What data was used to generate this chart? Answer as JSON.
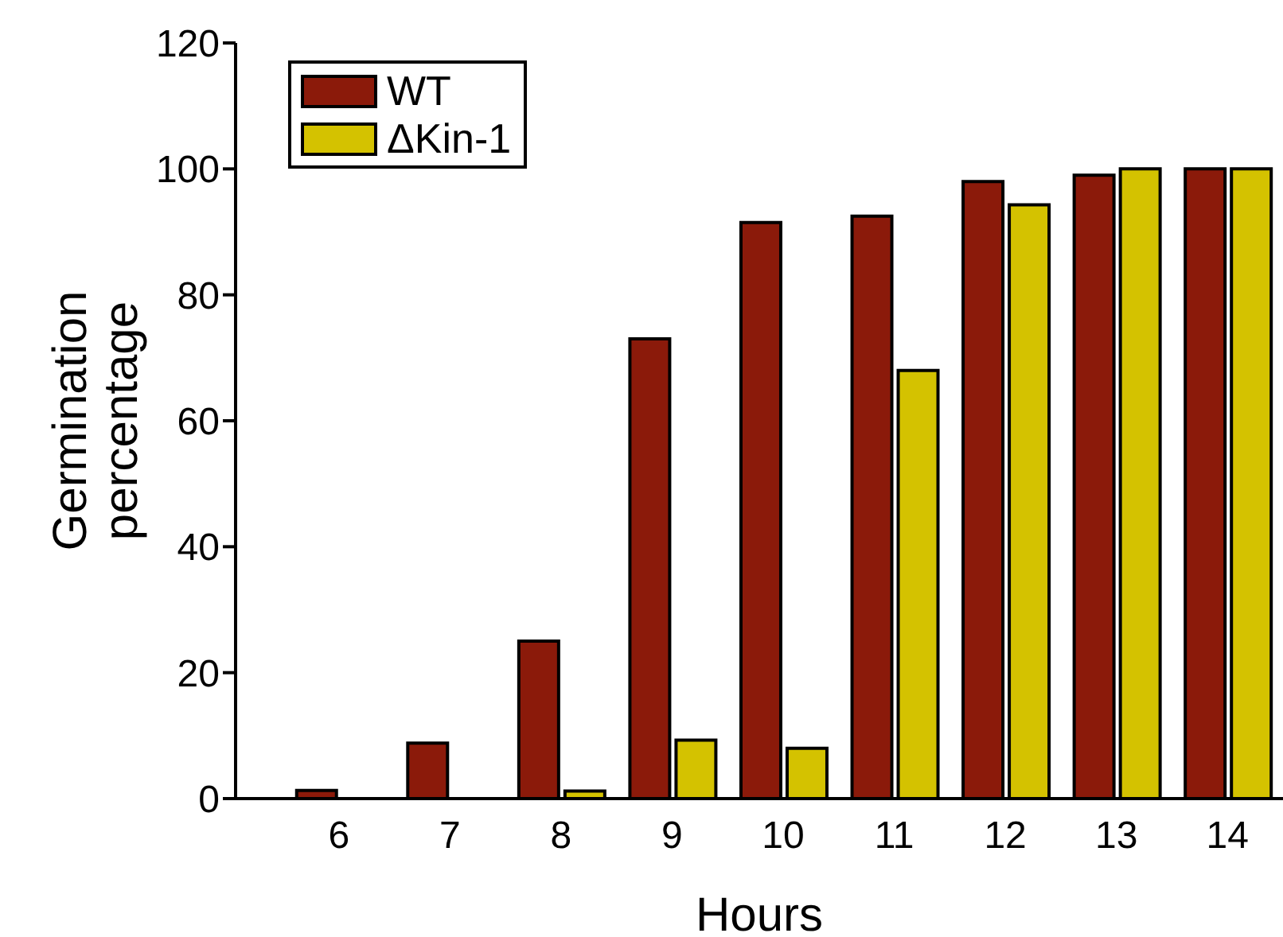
{
  "chart_data": {
    "type": "bar",
    "xlabel": "Hours",
    "ylabel": "Germination percentage",
    "categories": [
      "6",
      "7",
      "8",
      "9",
      "10",
      "11",
      "12",
      "13",
      "14"
    ],
    "series": [
      {
        "name": "WT",
        "color": "#8b1a0a",
        "values": [
          1.3,
          8.8,
          25,
          73,
          91.5,
          92.5,
          98,
          99,
          100
        ]
      },
      {
        "name": "ΔKin-1",
        "color": "#d4c200",
        "values": [
          0,
          0,
          1.2,
          9.3,
          8,
          68,
          94.3,
          100,
          100
        ]
      }
    ],
    "ylim": [
      0,
      120
    ],
    "yticks": [
      0,
      20,
      40,
      60,
      80,
      100,
      120
    ],
    "legend": "top left"
  }
}
